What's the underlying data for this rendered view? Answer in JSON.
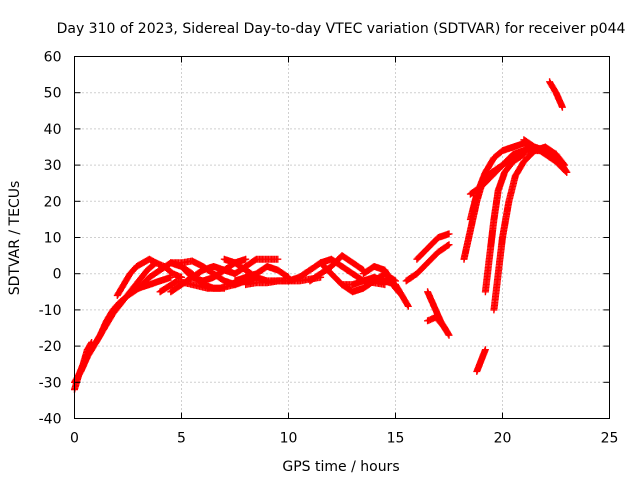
{
  "chart_data": {
    "type": "scatter",
    "title": "Day 310 of 2023, Sidereal Day-to-day VTEC variation (SDTVAR) for receiver p044",
    "xlabel": "GPS time / hours",
    "ylabel": "SDTVAR / TECUs",
    "xlim": [
      0,
      25
    ],
    "ylim": [
      -40,
      60
    ],
    "xticks": [
      0,
      5,
      10,
      15,
      20,
      25
    ],
    "yticks": [
      -40,
      -30,
      -20,
      -10,
      0,
      10,
      20,
      30,
      40,
      50,
      60
    ],
    "grid": true,
    "marker": "plus",
    "color": "#ff0000",
    "tracks": [
      [
        [
          0.0,
          -32
        ],
        [
          0.2,
          -28
        ],
        [
          0.4,
          -25
        ],
        [
          0.6,
          -21
        ],
        [
          0.8,
          -19
        ]
      ],
      [
        [
          0.0,
          -30
        ],
        [
          0.3,
          -27
        ],
        [
          0.6,
          -23
        ],
        [
          0.9,
          -20
        ],
        [
          1.2,
          -17
        ],
        [
          1.5,
          -13
        ],
        [
          1.8,
          -10
        ],
        [
          2.1,
          -8
        ],
        [
          2.5,
          -6
        ],
        [
          3.0,
          -4
        ],
        [
          3.5,
          -3
        ],
        [
          4.0,
          -2
        ],
        [
          4.5,
          -1
        ]
      ],
      [
        [
          1.0,
          -19
        ],
        [
          1.4,
          -15
        ],
        [
          1.8,
          -11
        ],
        [
          2.2,
          -8
        ],
        [
          2.6,
          -5
        ],
        [
          3.0,
          -2
        ],
        [
          3.4,
          1
        ],
        [
          3.8,
          3
        ],
        [
          4.2,
          2
        ],
        [
          4.6,
          0
        ],
        [
          5.0,
          -1
        ]
      ],
      [
        [
          2.0,
          -6
        ],
        [
          2.3,
          -3
        ],
        [
          2.6,
          0
        ],
        [
          2.9,
          2
        ],
        [
          3.2,
          3
        ],
        [
          3.5,
          4
        ],
        [
          3.8,
          3
        ]
      ],
      [
        [
          3.0,
          -4
        ],
        [
          3.5,
          -1
        ],
        [
          4.0,
          1
        ],
        [
          4.5,
          3
        ],
        [
          5.0,
          2
        ],
        [
          5.5,
          0
        ],
        [
          6.0,
          -3
        ],
        [
          6.5,
          -4
        ],
        [
          7.0,
          -4
        ]
      ],
      [
        [
          4.5,
          -5
        ],
        [
          5.0,
          -3
        ],
        [
          5.5,
          -1
        ],
        [
          6.0,
          1
        ],
        [
          6.5,
          2
        ],
        [
          7.0,
          1
        ],
        [
          7.5,
          0
        ]
      ],
      [
        [
          4.0,
          -5
        ],
        [
          4.8,
          -2
        ],
        [
          5.5,
          -3
        ],
        [
          6.2,
          -4
        ],
        [
          6.8,
          -4
        ],
        [
          7.5,
          -3
        ]
      ],
      [
        [
          4.5,
          3
        ],
        [
          5.0,
          3
        ],
        [
          5.5,
          3.5
        ],
        [
          6.0,
          2
        ],
        [
          6.5,
          0
        ],
        [
          7.0,
          -2
        ],
        [
          7.5,
          -3
        ],
        [
          8.0,
          -2
        ],
        [
          8.5,
          -1
        ]
      ],
      [
        [
          5.0,
          2
        ],
        [
          5.5,
          -1
        ],
        [
          6.0,
          -2
        ],
        [
          6.5,
          -1
        ],
        [
          7.0,
          1
        ],
        [
          7.5,
          3
        ],
        [
          8.0,
          4
        ]
      ],
      [
        [
          7.0,
          4
        ],
        [
          7.5,
          3
        ],
        [
          8.0,
          1
        ],
        [
          8.5,
          -1
        ],
        [
          9.0,
          -2
        ],
        [
          9.5,
          -2
        ],
        [
          10.0,
          -2
        ]
      ],
      [
        [
          7.5,
          0
        ],
        [
          8.0,
          2
        ],
        [
          8.5,
          4
        ],
        [
          9.0,
          4
        ],
        [
          9.5,
          4
        ]
      ],
      [
        [
          7.5,
          -2
        ],
        [
          8.0,
          -1
        ],
        [
          8.5,
          0
        ],
        [
          9.0,
          2
        ],
        [
          9.5,
          1
        ],
        [
          10.0,
          -1
        ]
      ],
      [
        [
          8.0,
          -3
        ],
        [
          8.5,
          -2.5
        ],
        [
          9.0,
          -2.5
        ],
        [
          9.5,
          -2
        ],
        [
          10.0,
          -2
        ],
        [
          10.5,
          -2
        ],
        [
          11.0,
          -1.5
        ],
        [
          11.5,
          -1
        ]
      ],
      [
        [
          10.0,
          -2
        ],
        [
          10.5,
          -1
        ],
        [
          11.0,
          1
        ],
        [
          11.5,
          3
        ],
        [
          12.0,
          4
        ],
        [
          12.5,
          2
        ],
        [
          13.0,
          0
        ],
        [
          13.5,
          -2
        ],
        [
          14.0,
          -2.5
        ],
        [
          14.5,
          -3
        ]
      ],
      [
        [
          11.0,
          -2
        ],
        [
          11.5,
          0
        ],
        [
          12.0,
          2
        ],
        [
          12.5,
          5
        ],
        [
          13.0,
          3
        ],
        [
          13.5,
          1
        ]
      ],
      [
        [
          11.5,
          3
        ],
        [
          12.0,
          0
        ],
        [
          12.5,
          -3
        ],
        [
          13.0,
          -5
        ],
        [
          13.5,
          -4
        ],
        [
          14.0,
          -2
        ],
        [
          14.5,
          0
        ],
        [
          15.0,
          -2
        ]
      ],
      [
        [
          12.5,
          -3
        ],
        [
          13.0,
          -3
        ],
        [
          13.5,
          -2
        ],
        [
          14.0,
          -1
        ],
        [
          14.5,
          -2
        ],
        [
          15.0,
          -3
        ]
      ],
      [
        [
          13.5,
          0
        ],
        [
          14.0,
          2
        ],
        [
          14.5,
          1
        ],
        [
          15.0,
          -4
        ],
        [
          15.3,
          -6
        ]
      ],
      [
        [
          15.0,
          -3
        ],
        [
          15.3,
          -6
        ],
        [
          15.6,
          -9
        ]
      ],
      [
        [
          15.5,
          -2
        ],
        [
          16.0,
          0
        ],
        [
          16.5,
          3
        ],
        [
          17.0,
          6
        ],
        [
          17.5,
          8
        ]
      ],
      [
        [
          16.0,
          4
        ],
        [
          16.5,
          7
        ],
        [
          17.0,
          10
        ],
        [
          17.5,
          11
        ]
      ],
      [
        [
          16.5,
          -5
        ],
        [
          16.8,
          -9
        ],
        [
          17.1,
          -13
        ],
        [
          17.4,
          -16
        ]
      ],
      [
        [
          16.5,
          -13
        ],
        [
          16.9,
          -12
        ],
        [
          17.3,
          -15
        ],
        [
          17.5,
          -17
        ]
      ],
      [
        [
          18.2,
          4
        ],
        [
          18.5,
          12
        ],
        [
          18.8,
          20
        ],
        [
          19.1,
          26
        ],
        [
          19.5,
          28
        ],
        [
          20.0,
          30
        ],
        [
          20.5,
          33
        ],
        [
          21.0,
          34
        ],
        [
          21.5,
          35
        ]
      ],
      [
        [
          18.5,
          15
        ],
        [
          18.8,
          22
        ],
        [
          19.2,
          28
        ],
        [
          19.6,
          32
        ],
        [
          20.0,
          34
        ],
        [
          20.5,
          35
        ],
        [
          21.0,
          36
        ],
        [
          21.5,
          35
        ],
        [
          22.0,
          33
        ],
        [
          22.5,
          31
        ],
        [
          23.0,
          28
        ]
      ],
      [
        [
          18.5,
          22
        ],
        [
          19.0,
          24
        ],
        [
          19.5,
          27
        ],
        [
          20.0,
          30
        ],
        [
          20.5,
          32
        ],
        [
          21.0,
          34
        ],
        [
          21.5,
          34
        ],
        [
          22.0,
          34
        ],
        [
          22.5,
          33
        ]
      ],
      [
        [
          18.8,
          -27
        ],
        [
          19.0,
          -24
        ],
        [
          19.2,
          -21
        ]
      ],
      [
        [
          19.2,
          -5
        ],
        [
          19.4,
          5
        ],
        [
          19.6,
          15
        ],
        [
          19.8,
          23
        ],
        [
          20.1,
          28
        ],
        [
          20.5,
          31
        ],
        [
          21.0,
          33
        ]
      ],
      [
        [
          19.6,
          -10
        ],
        [
          19.8,
          0
        ],
        [
          20.0,
          10
        ],
        [
          20.3,
          20
        ],
        [
          20.6,
          27
        ],
        [
          21.0,
          31
        ],
        [
          21.5,
          34
        ],
        [
          22.0,
          35
        ],
        [
          22.5,
          33
        ],
        [
          22.9,
          30
        ]
      ],
      [
        [
          21.0,
          37
        ],
        [
          21.5,
          35
        ],
        [
          22.0,
          34
        ],
        [
          22.5,
          33
        ],
        [
          23.0,
          28
        ]
      ],
      [
        [
          22.2,
          53
        ],
        [
          22.5,
          50
        ],
        [
          22.8,
          46
        ]
      ]
    ]
  }
}
